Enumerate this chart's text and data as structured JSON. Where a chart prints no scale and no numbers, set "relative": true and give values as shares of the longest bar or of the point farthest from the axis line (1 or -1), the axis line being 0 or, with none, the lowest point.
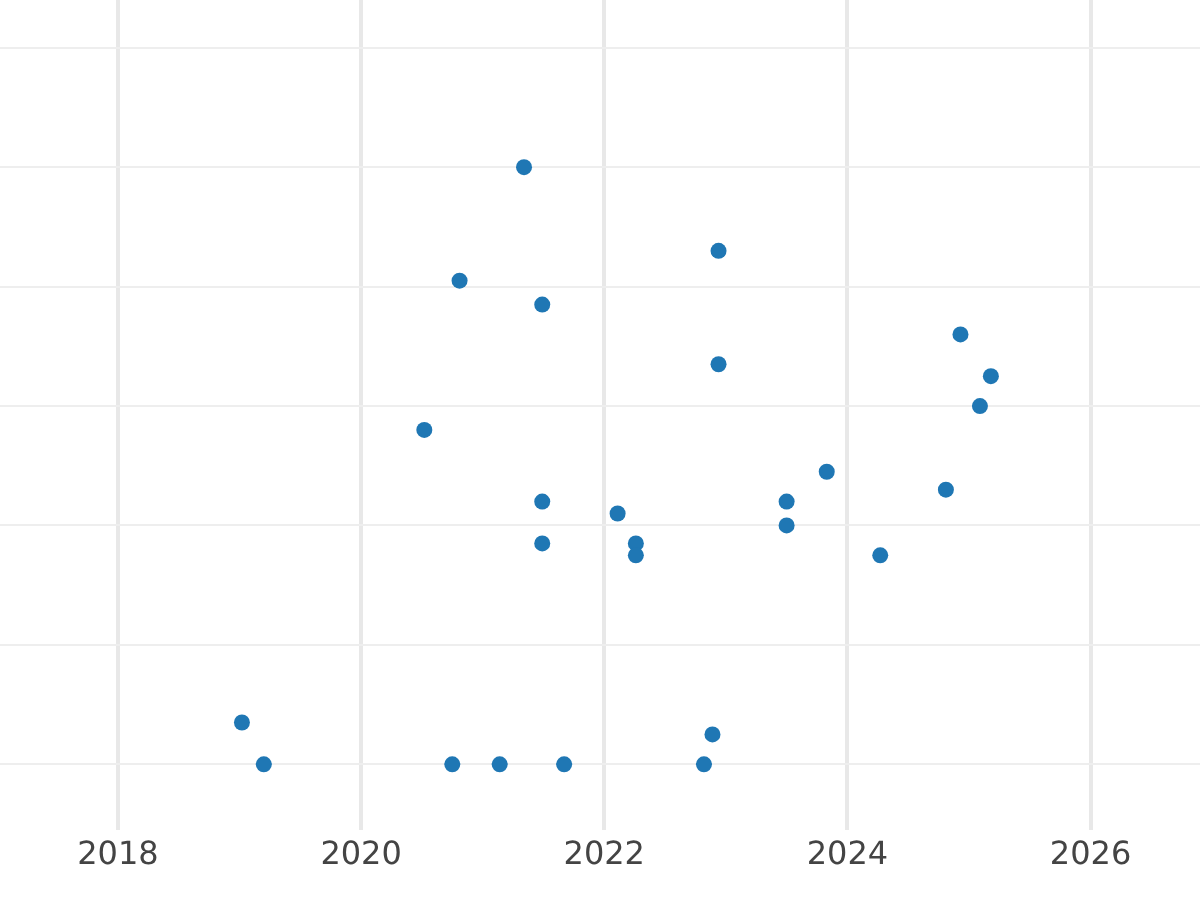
{
  "chart_data": {
    "type": "scatter",
    "relative": true,
    "marker": "circle",
    "grid": true,
    "xlim": [
      2017.03,
      2026.9
    ],
    "xticks": [
      2018,
      2020,
      2022,
      2024,
      2026
    ],
    "tick_labels": "x",
    "series": [
      {
        "color": "#1f77b4",
        "x": [
          2021.34,
          2022.94,
          2020.81,
          2021.49,
          2024.93,
          2022.94,
          2025.18,
          2025.09,
          2020.52,
          2023.83,
          2024.81,
          2021.49,
          2023.5,
          2022.11,
          2023.5,
          2021.49,
          2022.26,
          2022.26,
          2024.27,
          2019.02,
          2022.89,
          2019.2,
          2020.75,
          2021.14,
          2021.67,
          2022.82
        ],
        "values": [
          1,
          0.86,
          0.81,
          0.77,
          0.72,
          0.67,
          0.65,
          0.6,
          0.56,
          0.49,
          0.46,
          0.44,
          0.44,
          0.42,
          0.4,
          0.37,
          0.37,
          0.35,
          0.35,
          0.07,
          0.05,
          0,
          0,
          0,
          0,
          0
        ]
      }
    ]
  }
}
